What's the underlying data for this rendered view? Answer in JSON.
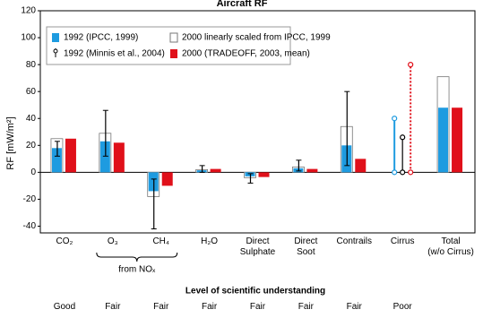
{
  "chart_data": {
    "type": "bar",
    "title": "Aircraft RF",
    "y_label": "RF [mW/m²]",
    "categories": [
      "CO₂",
      "O₃",
      "CH₄",
      "H₂O",
      "Direct\nSulphate",
      "Direct\nSoot",
      "Contrails",
      "Cirrus",
      "Total\n(w/o Cirrus)"
    ],
    "group_label": "from NOₓ",
    "series": [
      {
        "name": "1992 (IPCC, 1999)",
        "color": "#1e9be0",
        "values": [
          18,
          23,
          -14,
          1.5,
          -3,
          3,
          20,
          null,
          48
        ],
        "cirrus_range": [
          0,
          40
        ]
      },
      {
        "name": "2000 linearly scaled from IPCC, 1999",
        "color": "#ffffff",
        "values": [
          25,
          29,
          -18,
          2,
          -4,
          4,
          34,
          null,
          71
        ]
      },
      {
        "name": "1992 (Minnis et al., 2004)",
        "color": "#000000",
        "low": [
          12,
          12,
          -42,
          0,
          -8,
          1,
          5,
          0,
          null
        ],
        "high": [
          23,
          46,
          -5,
          5,
          -1,
          9,
          60,
          26,
          null
        ]
      },
      {
        "name": "2000 (TRADEOFF, 2003, mean)",
        "color": "#e0101a",
        "values": [
          25,
          22,
          -10,
          2.5,
          -3.5,
          2.5,
          10,
          null,
          48
        ],
        "cirrus_range": [
          0,
          80
        ],
        "line_style": "dotted"
      }
    ],
    "ylim": [
      -45,
      120
    ],
    "yticks": [
      -40,
      -20,
      0,
      20,
      40,
      60,
      80,
      100,
      120
    ],
    "loss_heading": "Level of scientific understanding",
    "understanding": [
      "Good",
      "Fair",
      "Fair",
      "Fair",
      "Fair",
      "Fair",
      "Fair",
      "Poor",
      null
    ]
  }
}
